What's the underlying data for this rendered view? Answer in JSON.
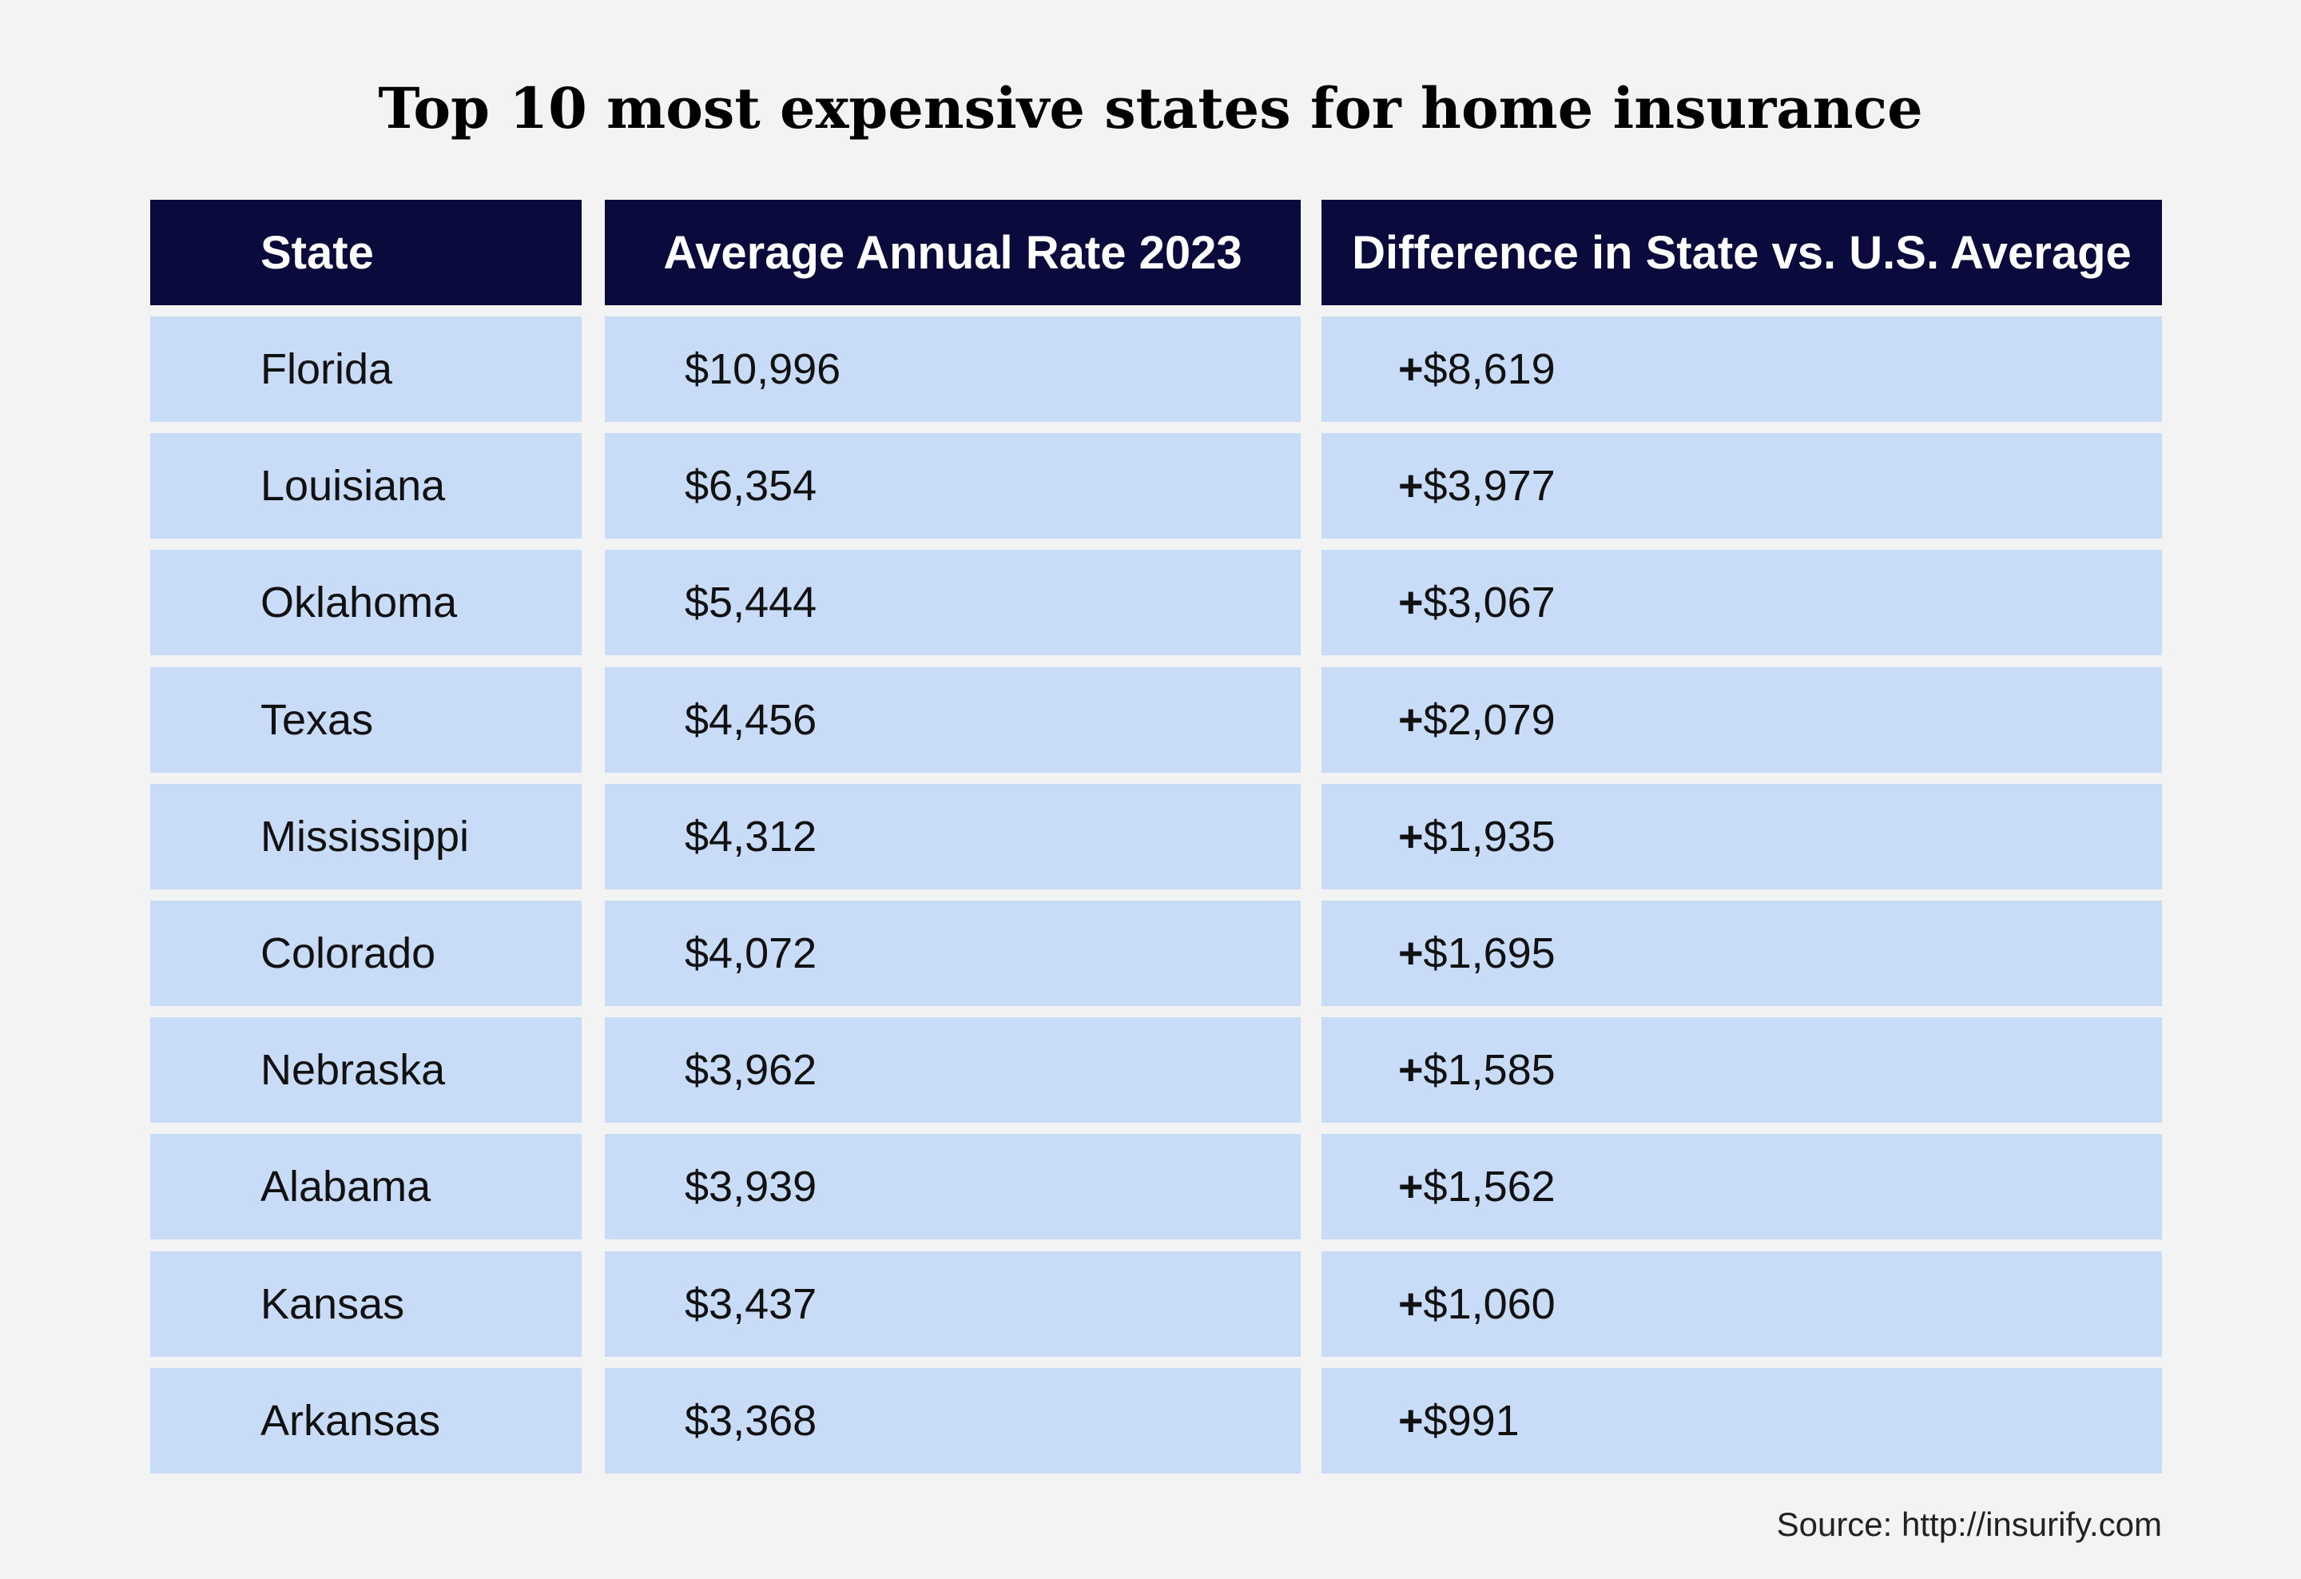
{
  "title": "Top 10 most expensive states for home insurance",
  "source": "Source: http://insurify.com",
  "colors": {
    "header_bg": "#0b0a3c",
    "row_bg": "#c8dbf7",
    "page_bg": "#f3f3f3"
  },
  "chart_data": {
    "type": "table",
    "title": "Top 10 most expensive states for home insurance",
    "columns": [
      "State",
      "Average Annual Rate 2023",
      "Difference in State vs. U.S. Average"
    ],
    "rows": [
      {
        "state": "Florida",
        "rate": "$10,996",
        "diff_sign": "+",
        "diff": "$8,619"
      },
      {
        "state": "Louisiana",
        "rate": "$6,354",
        "diff_sign": "+",
        "diff": "$3,977"
      },
      {
        "state": "Oklahoma",
        "rate": "$5,444",
        "diff_sign": "+",
        "diff": "$3,067"
      },
      {
        "state": "Texas",
        "rate": "$4,456",
        "diff_sign": "+",
        "diff": "$2,079"
      },
      {
        "state": "Mississippi",
        "rate": "$4,312",
        "diff_sign": "+",
        "diff": "$1,935"
      },
      {
        "state": "Colorado",
        "rate": "$4,072",
        "diff_sign": "+",
        "diff": "$1,695"
      },
      {
        "state": "Nebraska",
        "rate": "$3,962",
        "diff_sign": "+",
        "diff": "$1,585"
      },
      {
        "state": "Alabama",
        "rate": "$3,939",
        "diff_sign": "+",
        "diff": "$1,562"
      },
      {
        "state": "Kansas",
        "rate": "$3,437",
        "diff_sign": "+",
        "diff": "$1,060"
      },
      {
        "state": "Arkansas",
        "rate": "$3,368",
        "diff_sign": "+",
        "diff": "$991"
      }
    ],
    "source": "Source: http://insurify.com"
  }
}
